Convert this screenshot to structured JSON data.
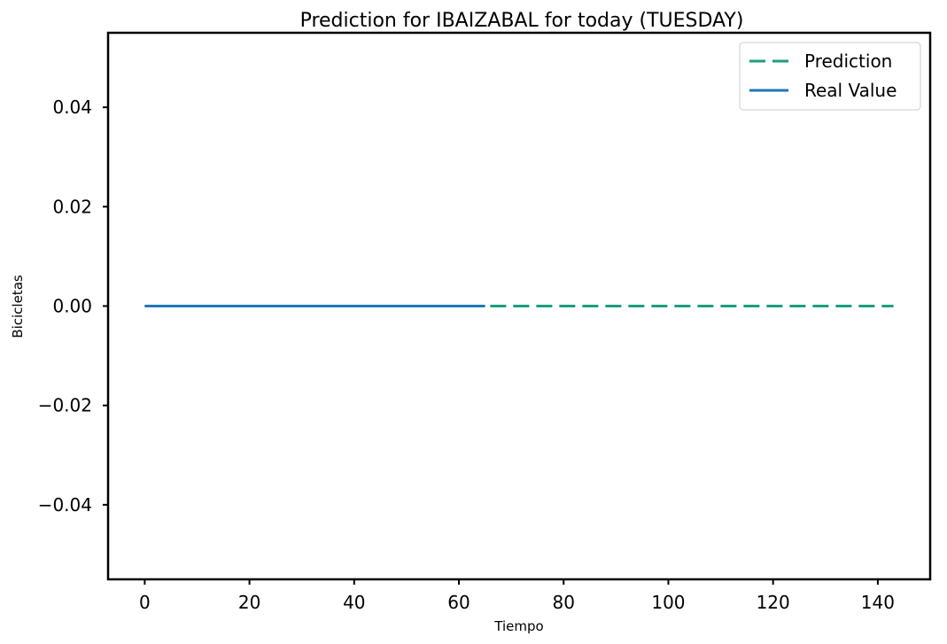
{
  "chart_data": {
    "type": "line",
    "title": "Prediction for IBAIZABAL for today (TUESDAY)",
    "xlabel": "Tiempo",
    "ylabel": "Bicicletas",
    "xlim": [
      -7,
      150
    ],
    "ylim": [
      -0.055,
      0.055
    ],
    "x_ticks": [
      0,
      20,
      40,
      60,
      80,
      100,
      120,
      140
    ],
    "x_tick_labels": [
      "0",
      "20",
      "40",
      "60",
      "80",
      "100",
      "120",
      "140"
    ],
    "y_ticks": [
      0.04,
      0.02,
      0.0,
      -0.02,
      -0.04
    ],
    "y_tick_labels": [
      "0.04",
      "0.02",
      "0.00",
      "−0.02",
      "−0.04"
    ],
    "grid": false,
    "legend_position": "top-right",
    "series": [
      {
        "name": "Prediction",
        "style": "dashed",
        "color": "#1a9e7f",
        "x": [
          0,
          143
        ],
        "y": [
          0,
          0
        ]
      },
      {
        "name": "Real Value",
        "style": "solid",
        "color": "#1f77b4",
        "x": [
          0,
          65
        ],
        "y": [
          0,
          0
        ]
      }
    ]
  }
}
